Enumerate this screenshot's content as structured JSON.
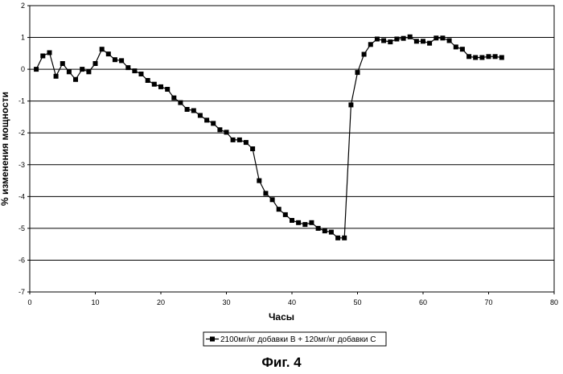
{
  "figure_caption": "Фиг. 4",
  "chart_data": {
    "type": "line",
    "xlabel": "Часы",
    "ylabel": "% изменения мощности",
    "xlim": [
      0,
      80
    ],
    "ylim": [
      -7,
      2
    ],
    "xticks": [
      "0",
      "10",
      "20",
      "30",
      "40",
      "50",
      "60",
      "70",
      "80"
    ],
    "yticks": [
      "2",
      "1",
      "0",
      "-1",
      "-2",
      "-3",
      "-4",
      "-5",
      "-6",
      "-7"
    ],
    "grid": "horizontal",
    "legend_position": "bottom-center",
    "legend_text": "2100мг/кг добавки  В + 120мг/кг добавки  С",
    "series": [
      {
        "name": "2100мг/кг добавки  В + 120мг/кг добавки  С",
        "color": "#000000",
        "marker": "square",
        "x": [
          1,
          2,
          3,
          4,
          5,
          6,
          7,
          8,
          9,
          10,
          11,
          12,
          13,
          14,
          15,
          16,
          17,
          18,
          19,
          20,
          21,
          22,
          23,
          24,
          25,
          26,
          27,
          28,
          29,
          30,
          31,
          32,
          33,
          34,
          35,
          36,
          37,
          38,
          39,
          40,
          41,
          42,
          43,
          44,
          45,
          46,
          47,
          48,
          49,
          50,
          51,
          52,
          53,
          54,
          55,
          56,
          57,
          58,
          59,
          60,
          61,
          62,
          63,
          64,
          65,
          66,
          67,
          68,
          69,
          70,
          71,
          72
        ],
        "values": [
          0.0,
          0.42,
          0.52,
          -0.22,
          0.18,
          -0.08,
          -0.32,
          0.0,
          -0.08,
          0.18,
          0.63,
          0.48,
          0.3,
          0.27,
          0.05,
          -0.05,
          -0.15,
          -0.35,
          -0.47,
          -0.55,
          -0.63,
          -0.9,
          -1.05,
          -1.26,
          -1.3,
          -1.45,
          -1.6,
          -1.7,
          -1.9,
          -1.98,
          -2.22,
          -2.22,
          -2.3,
          -2.5,
          -3.5,
          -3.9,
          -4.1,
          -4.4,
          -4.57,
          -4.75,
          -4.82,
          -4.88,
          -4.82,
          -5.0,
          -5.08,
          -5.12,
          -5.3,
          -5.3,
          -1.12,
          -0.1,
          0.47,
          0.78,
          0.95,
          0.9,
          0.86,
          0.95,
          0.97,
          1.02,
          0.88,
          0.88,
          0.82,
          0.98,
          0.98,
          0.9,
          0.7,
          0.63,
          0.4,
          0.37,
          0.37,
          0.4,
          0.4,
          0.37
        ]
      }
    ]
  }
}
